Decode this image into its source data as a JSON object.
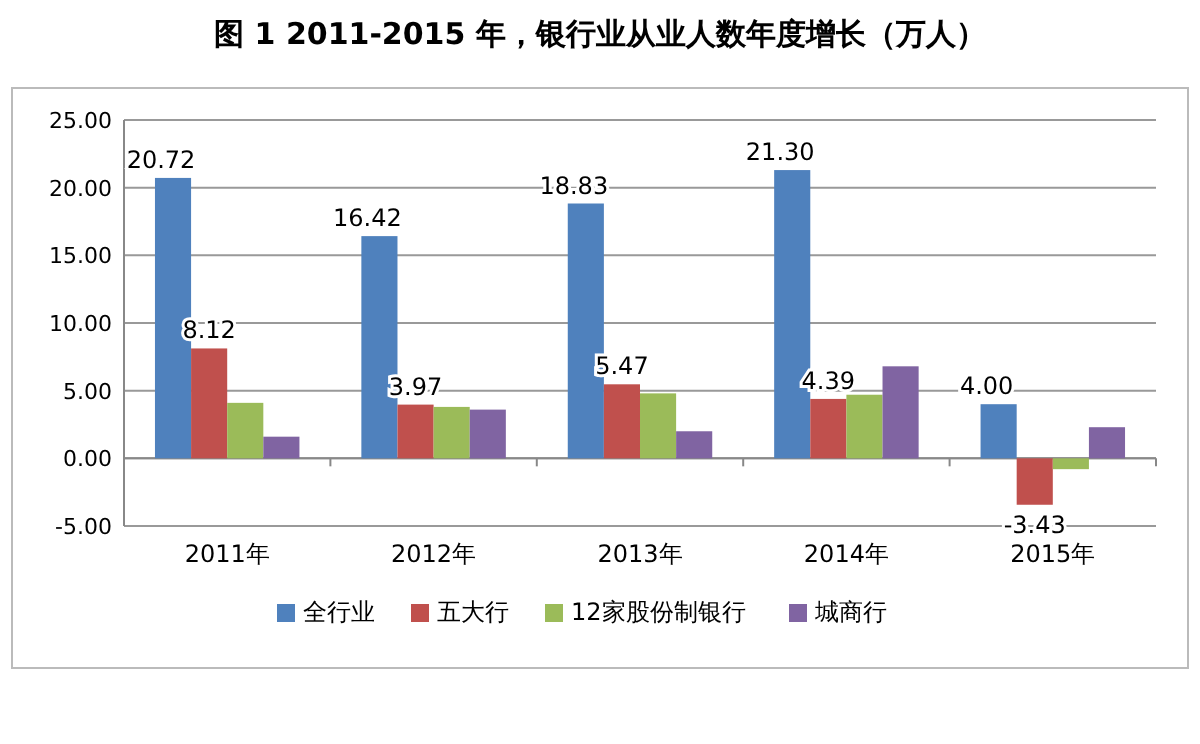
{
  "chart_data": {
    "type": "bar",
    "title": "图 1 2011-2015 年，银行业从业人数年度增长（万人）",
    "categories": [
      "2011年",
      "2012年",
      "2013年",
      "2014年",
      "2015年"
    ],
    "series": [
      {
        "name": "全行业",
        "color": "#4f81bd",
        "values": [
          20.72,
          16.42,
          18.83,
          21.3,
          4.0
        ],
        "value_labels": [
          "20.72",
          "16.42",
          "18.83",
          "21.30",
          "4.00"
        ]
      },
      {
        "name": "五大行",
        "color": "#c0504d",
        "values": [
          8.12,
          3.97,
          5.47,
          4.39,
          -3.43
        ],
        "value_labels": [
          "8.12",
          "3.97",
          "5.47",
          "4.39",
          "-3.43"
        ]
      },
      {
        "name": "12家股份制银行",
        "color": "#9bbb59",
        "values": [
          4.1,
          3.8,
          4.8,
          4.7,
          -0.8
        ]
      },
      {
        "name": "城商行",
        "color": "#8064a2",
        "values": [
          1.6,
          3.6,
          2.0,
          6.8,
          2.3
        ]
      }
    ],
    "ylim": [
      -5,
      25
    ],
    "yticks": [
      {
        "value": -5,
        "label": "-5.00"
      },
      {
        "value": 0,
        "label": "0.00"
      },
      {
        "value": 5,
        "label": "5.00"
      },
      {
        "value": 10,
        "label": "10.00"
      },
      {
        "value": 15,
        "label": "15.00"
      },
      {
        "value": 20,
        "label": "20.00"
      },
      {
        "value": 25,
        "label": "25.00"
      }
    ],
    "grid": "y",
    "legend": "bottom"
  }
}
